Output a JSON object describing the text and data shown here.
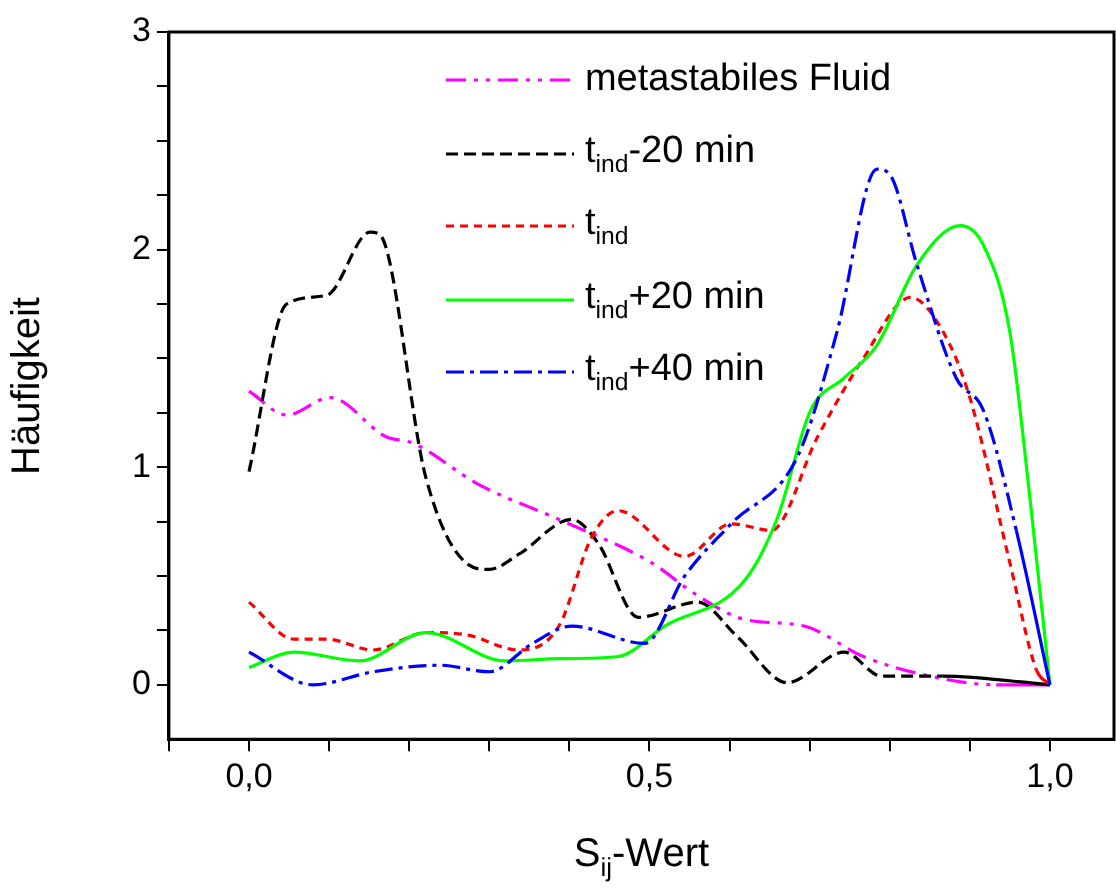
{
  "chart_data": {
    "type": "line",
    "xlabel": "S$_{ij}$-Wert",
    "ylabel": "Häufigkeit",
    "xlim": [
      -0.1,
      1.08
    ],
    "ylim": [
      -0.25,
      3
    ],
    "xticks": [
      {
        "value": -0.1,
        "label": null
      },
      {
        "value": 0,
        "label": "0,0"
      },
      {
        "value": 0.1,
        "label": null
      },
      {
        "value": 0.2,
        "label": null
      },
      {
        "value": 0.3,
        "label": null
      },
      {
        "value": 0.4,
        "label": null
      },
      {
        "value": 0.5,
        "label": "0,5"
      },
      {
        "value": 0.6,
        "label": null
      },
      {
        "value": 0.7,
        "label": null
      },
      {
        "value": 0.8,
        "label": null
      },
      {
        "value": 0.9,
        "label": null
      },
      {
        "value": 1,
        "label": "1,0"
      }
    ],
    "yticks": [
      0,
      {
        "value": 0.25,
        "label": null
      },
      {
        "value": 0.5,
        "label": null
      },
      {
        "value": 0.75,
        "label": null
      },
      1,
      {
        "value": 1.25,
        "label": null
      },
      {
        "value": 1.5,
        "label": null
      },
      {
        "value": 1.75,
        "label": null
      },
      2,
      {
        "value": 2.25,
        "label": null
      },
      {
        "value": 2.5,
        "label": null
      },
      {
        "value": 2.75,
        "label": null
      },
      3
    ],
    "grid": false,
    "legend": "top right",
    "marker": "none",
    "series": [
      {
        "name": "metastabiles Fluid",
        "color": "#ff00ff",
        "line_style": "dashdotdot",
        "x": [
          0,
          0.047,
          0.101,
          0.171,
          0.205,
          0.287,
          0.387,
          0.503,
          0.56,
          0.619,
          0.693,
          0.767,
          0.85,
          0.933,
          1
        ],
        "values": [
          1.35,
          1.24,
          1.32,
          1.14,
          1.11,
          0.92,
          0.76,
          0.56,
          0.41,
          0.3,
          0.27,
          0.13,
          0.04,
          0,
          0
        ]
      },
      {
        "name": "t$_{ind}$-20 min",
        "color": "#000000",
        "line_style": "dashed",
        "x": [
          0,
          0.047,
          0.097,
          0.151,
          0.163,
          0.221,
          0.271,
          0.3,
          0.337,
          0.403,
          0.436,
          0.486,
          0.56,
          0.61,
          0.672,
          0.743,
          0.79,
          0.866,
          1
        ],
        "values": [
          0.98,
          1.75,
          1.79,
          2.08,
          2.07,
          0.95,
          0.56,
          0.53,
          0.6,
          0.76,
          0.65,
          0.31,
          0.38,
          0.22,
          0.01,
          0.15,
          0.04,
          0.04,
          0
        ]
      },
      {
        "name": "t$_{ind}$",
        "color": "#ff0000",
        "line_style": "dotted",
        "x": [
          0,
          0.056,
          0.097,
          0.155,
          0.221,
          0.271,
          0.337,
          0.387,
          0.428,
          0.461,
          0.544,
          0.602,
          0.652,
          0.71,
          0.767,
          0.826,
          0.867,
          0.9,
          0.95,
          0.983,
          1
        ],
        "values": [
          0.38,
          0.21,
          0.21,
          0.16,
          0.24,
          0.23,
          0.16,
          0.27,
          0.68,
          0.8,
          0.59,
          0.74,
          0.71,
          1.14,
          1.5,
          1.78,
          1.62,
          1.32,
          0.56,
          0.07,
          0
        ]
      },
      {
        "name": "t$_{ind}$+20 min",
        "color": "#00ff00",
        "line_style": "solid",
        "x": [
          0,
          0.056,
          0.138,
          0.221,
          0.32,
          0.387,
          0.461,
          0.519,
          0.619,
          0.66,
          0.701,
          0.743,
          0.784,
          0.834,
          0.888,
          0.917,
          0.95,
          0.975,
          1
        ],
        "values": [
          0.08,
          0.15,
          0.11,
          0.24,
          0.11,
          0.12,
          0.13,
          0.27,
          0.48,
          0.77,
          1.26,
          1.41,
          1.56,
          1.93,
          2.11,
          2.02,
          1.62,
          0.86,
          0
        ]
      },
      {
        "name": "t$_{ind}$+40 min",
        "color": "#0000ff",
        "line_style": "dashdot",
        "x": [
          0,
          0.08,
          0.155,
          0.238,
          0.3,
          0.354,
          0.403,
          0.494,
          0.544,
          0.602,
          0.685,
          0.734,
          0.784,
          0.801,
          0.834,
          0.883,
          0.917,
          0.958,
          1
        ],
        "values": [
          0.15,
          0,
          0.06,
          0.09,
          0.06,
          0.19,
          0.27,
          0.19,
          0.5,
          0.74,
          1.05,
          1.62,
          2.37,
          2.34,
          1.93,
          1.41,
          1.26,
          0.71,
          0
        ]
      }
    ]
  }
}
